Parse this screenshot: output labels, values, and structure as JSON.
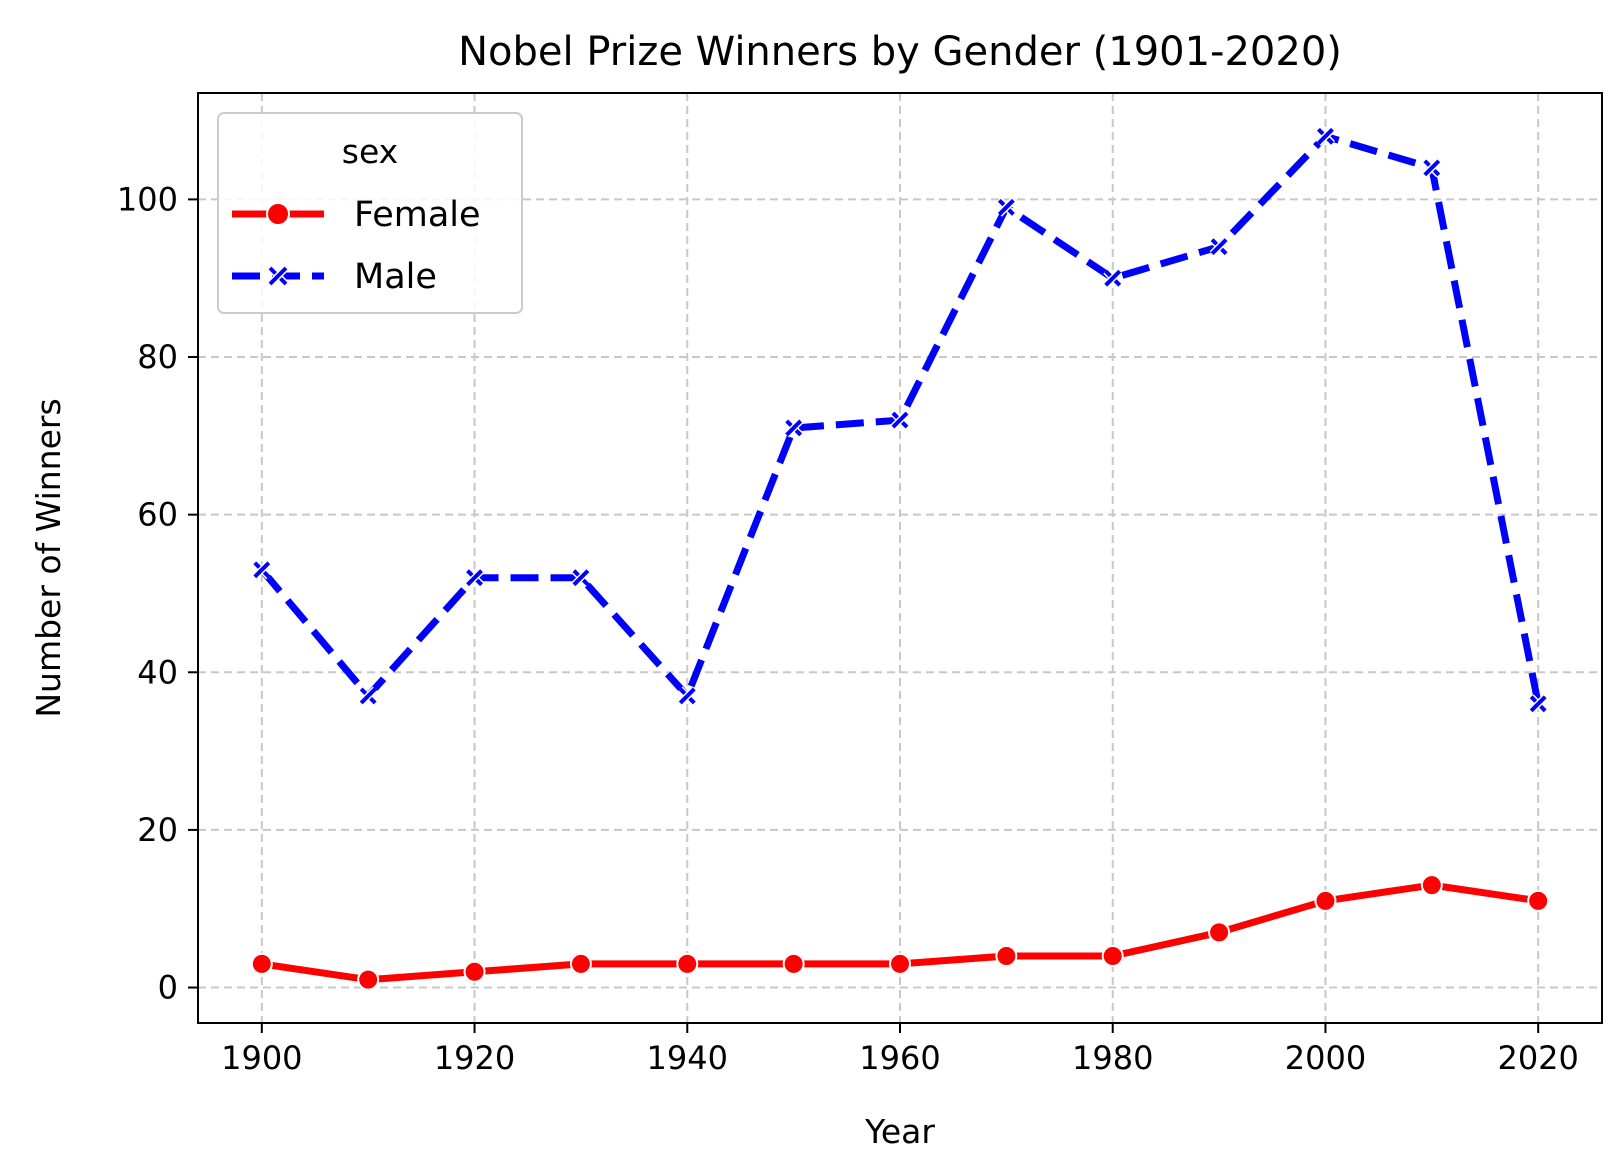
{
  "chart_data": {
    "type": "line",
    "title": "Nobel Prize Winners by Gender (1901-2020)",
    "xlabel": "Year",
    "ylabel": "Number of Winners",
    "xlim": [
      1894,
      2026
    ],
    "ylim": [
      -4.5,
      113.5
    ],
    "x_ticks": [
      1900,
      1920,
      1940,
      1960,
      1980,
      2000,
      2020
    ],
    "y_ticks": [
      0,
      20,
      40,
      60,
      80,
      100
    ],
    "grid": true,
    "legend": {
      "title": "sex",
      "placement": "top-left"
    },
    "x": [
      1900,
      1910,
      1920,
      1930,
      1940,
      1950,
      1960,
      1970,
      1980,
      1990,
      2000,
      2010,
      2020
    ],
    "series": [
      {
        "name": "Female",
        "color": "#ff0000",
        "line_style": "solid",
        "marker": "circle",
        "values": [
          3,
          1,
          2,
          3,
          3,
          3,
          3,
          4,
          4,
          7,
          11,
          13,
          11
        ]
      },
      {
        "name": "Male",
        "color": "#0000ff",
        "line_style": "dashed",
        "marker": "x",
        "values": [
          53,
          37,
          52,
          52,
          37,
          71,
          72,
          99,
          90,
          94,
          108,
          104,
          36
        ]
      }
    ]
  }
}
